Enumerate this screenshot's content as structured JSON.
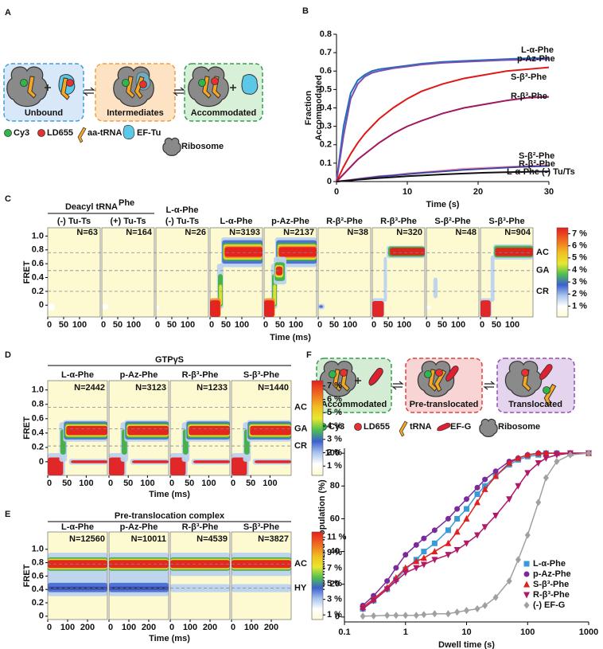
{
  "letters": [
    "A",
    "B",
    "C",
    "D",
    "E",
    "F"
  ],
  "diagram_a": {
    "states": [
      "Unbound",
      "Intermediates",
      "Accommodated"
    ],
    "legend": [
      "Cy3",
      "LD655",
      "aa-tRNA",
      "EF-Tu",
      "Ribosome"
    ]
  },
  "diagram_f": {
    "states": [
      "Accommodated",
      "Pre-translocated",
      "Translocated"
    ],
    "legend": [
      "Cy3",
      "LD655",
      "tRNA",
      "EF-G",
      "Ribosome"
    ]
  },
  "chart_data": [
    {
      "type": "line",
      "x_label": "Time (s)",
      "y_label": [
        "Fraction",
        "Accommodated"
      ],
      "x": [
        0,
        1,
        2,
        3,
        4,
        5,
        6,
        8,
        10,
        12,
        15,
        18,
        21,
        24,
        27,
        30
      ],
      "xlim": [
        0,
        30
      ],
      "xticks": [
        0,
        10,
        20,
        30
      ],
      "ylim": [
        0,
        0.8
      ],
      "yticks": [
        0,
        0.1,
        0.2,
        0.3,
        0.4,
        0.5,
        0.6,
        0.7,
        0.8
      ],
      "series": [
        {
          "name": "L-α-Phe",
          "color": "#1f6fc0",
          "values": [
            0,
            0.3,
            0.48,
            0.55,
            0.58,
            0.6,
            0.61,
            0.62,
            0.63,
            0.64,
            0.65,
            0.655,
            0.66,
            0.665,
            0.67,
            0.67
          ]
        },
        {
          "name": "p-Az-Phe",
          "color": "#7a4fb0",
          "values": [
            0,
            0.25,
            0.45,
            0.53,
            0.57,
            0.59,
            0.6,
            0.615,
            0.625,
            0.635,
            0.645,
            0.65,
            0.655,
            0.66,
            0.662,
            0.665
          ]
        },
        {
          "name": "S-β³-Phe",
          "color": "#e01818",
          "values": [
            0,
            0.08,
            0.15,
            0.21,
            0.26,
            0.3,
            0.34,
            0.4,
            0.45,
            0.49,
            0.53,
            0.56,
            0.58,
            0.6,
            0.61,
            0.62
          ]
        },
        {
          "name": "R-β³-Phe",
          "color": "#a01860",
          "values": [
            0,
            0.04,
            0.08,
            0.12,
            0.15,
            0.18,
            0.21,
            0.26,
            0.3,
            0.33,
            0.37,
            0.4,
            0.42,
            0.44,
            0.455,
            0.46
          ]
        },
        {
          "name": "S-β²-Phe",
          "color": "#f09aa8",
          "values": [
            0,
            0.005,
            0.01,
            0.015,
            0.02,
            0.025,
            0.03,
            0.035,
            0.045,
            0.05,
            0.06,
            0.07,
            0.075,
            0.08,
            0.085,
            0.09
          ]
        },
        {
          "name": "R-β²-Phe",
          "color": "#4040a0",
          "values": [
            0,
            0.004,
            0.008,
            0.013,
            0.018,
            0.022,
            0.027,
            0.033,
            0.04,
            0.047,
            0.055,
            0.064,
            0.07,
            0.076,
            0.081,
            0.085
          ]
        },
        {
          "name": "L-α-Phe (-) Tu/Ts",
          "color": "#111111",
          "values": [
            0,
            0.003,
            0.006,
            0.01,
            0.013,
            0.016,
            0.019,
            0.024,
            0.029,
            0.033,
            0.039,
            0.044,
            0.048,
            0.051,
            0.053,
            0.055
          ]
        }
      ]
    },
    {
      "type": "heatmap",
      "headers": [
        "Deacyl tRNA",
        "L-α-Phe"
      ],
      "header_sup": "Phe",
      "x_label": "Time (ms)",
      "y_label": "FRET",
      "xlim": [
        0,
        165
      ],
      "xticks": [
        0,
        50,
        100
      ],
      "ylim": [
        -0.17,
        1.12
      ],
      "yticks": [
        0,
        0.2,
        0.4,
        0.6,
        0.8,
        {
          "value": 1,
          "label": "1.0"
        }
      ],
      "states": [
        {
          "label": "AC",
          "value": 0.76
        },
        {
          "label": "GA",
          "value": 0.5
        },
        {
          "label": "CR",
          "value": 0.2
        }
      ],
      "colorbar_lim": [
        0.1,
        7.5
      ],
      "colorbar_ticks": [
        {
          "value": 1,
          "label": "1 %"
        },
        {
          "value": 2,
          "label": "2 %"
        },
        {
          "value": 3,
          "label": "3 %"
        },
        {
          "value": 4,
          "label": "4 %"
        },
        {
          "value": 5,
          "label": "5 %"
        },
        {
          "value": 6,
          "label": "6 %"
        },
        {
          "value": 7,
          "label": "7 %"
        }
      ],
      "panels": [
        {
          "name": "(-) Tu-Ts",
          "color": "#222222",
          "count_label": "N=63"
        },
        {
          "name": "(+) Tu-Ts",
          "color": "#222222",
          "count_label": "N=164"
        },
        {
          "name": "(-) Tu-Ts",
          "color": "#222222",
          "count_label": "N=26"
        },
        {
          "name": "L-α-Phe",
          "color": "#2a7fc1",
          "count_label": "N=3193"
        },
        {
          "name": "p-Az-Phe",
          "color": "#7b4fa8",
          "count_label": "N=2137"
        },
        {
          "name": "R-β²-Phe",
          "color": "#3a3a9a",
          "count_label": "N=38"
        },
        {
          "name": "R-β³-Phe",
          "color": "#a0195a",
          "count_label": "N=320"
        },
        {
          "name": "S-β²-Phe",
          "color": "#f0a0a8",
          "count_label": "N=48"
        },
        {
          "name": "S-β³-Phe",
          "color": "#d42020",
          "count_label": "N=904"
        }
      ]
    },
    {
      "type": "heatmap",
      "title": "GTPγS",
      "x_label": "Time (ms)",
      "y_label": "FRET",
      "xlim": [
        0,
        155
      ],
      "xticks": [
        0,
        50,
        100
      ],
      "ylim": [
        -0.19,
        1.13
      ],
      "yticks": [
        0,
        0.2,
        0.4,
        0.6,
        0.8,
        {
          "value": 1,
          "label": "1.0"
        }
      ],
      "states": [
        {
          "label": "AC",
          "value": 0.76
        },
        {
          "label": "GA",
          "value": 0.46
        },
        {
          "label": "CR",
          "value": 0.22
        }
      ],
      "colorbar_lim": [
        0.3,
        7.4
      ],
      "colorbar_ticks": [
        {
          "value": 1,
          "label": "1 %"
        },
        {
          "value": 2,
          "label": "2 %"
        },
        {
          "value": 3,
          "label": "3 %"
        },
        {
          "value": 4,
          "label": "4 %"
        },
        {
          "value": 5,
          "label": "5 %"
        },
        {
          "value": 6,
          "label": "6 %"
        },
        {
          "value": 7,
          "label": "7 %"
        }
      ],
      "panels": [
        {
          "name": "L-α-Phe",
          "color": "#2a7fc1",
          "count_label": "N=2442"
        },
        {
          "name": "p-Az-Phe",
          "color": "#7b4fa8",
          "count_label": "N=3123"
        },
        {
          "name": "R-β³-Phe",
          "color": "#a0195a",
          "count_label": "N=1233"
        },
        {
          "name": "S-β³-Phe",
          "color": "#d42020",
          "count_label": "N=1440"
        }
      ]
    },
    {
      "type": "heatmap",
      "title": "Pre-translocation complex",
      "x_label": "Time (ms)",
      "y_label": "FRET",
      "xlim": [
        0,
        300
      ],
      "xticks": [
        0,
        100,
        200
      ],
      "ylim": [
        -0.05,
        1.26
      ],
      "yticks": [
        0,
        0.2,
        0.4,
        0.6,
        0.8,
        {
          "value": 1,
          "label": "1.0"
        }
      ],
      "states": [
        {
          "label": "AC",
          "value": 0.78
        },
        {
          "label": "HY",
          "value": 0.42
        }
      ],
      "colorbar_lim": [
        0.4,
        11.7
      ],
      "colorbar_ticks": [
        {
          "value": 1,
          "label": "1 %"
        },
        {
          "value": 3,
          "label": "3 %"
        },
        {
          "value": 5,
          "label": "5 %"
        },
        {
          "value": 7,
          "label": "7 %"
        },
        {
          "value": 9,
          "label": "9 %"
        },
        {
          "value": 11,
          "label": "11 %"
        }
      ],
      "panels": [
        {
          "name": "L-α-Phe",
          "color": "#2a7fc1",
          "count_label": "N=12560"
        },
        {
          "name": "p-Az-Phe",
          "color": "#7b4fa8",
          "count_label": "N=10011"
        },
        {
          "name": "R-β³-Phe",
          "color": "#a0195a",
          "count_label": "N=4539"
        },
        {
          "name": "S-β³-Phe",
          "color": "#d42020",
          "count_label": "N=3827"
        }
      ]
    },
    {
      "type": "line",
      "log_x": true,
      "legend": "lower right",
      "x_label": "Dwell time (s)",
      "y_label": "Normalized Population (%)",
      "x": [
        0.2,
        0.3,
        0.5,
        0.7,
        1,
        1.5,
        2,
        3,
        5,
        7,
        10,
        15,
        20,
        30,
        50,
        70,
        100,
        150,
        200,
        300,
        500,
        1000
      ],
      "xlim": [
        0.1,
        1000
      ],
      "xticks": [
        0.1,
        1,
        10,
        100,
        1000
      ],
      "ylim": [
        -3,
        103
      ],
      "yticks": [
        0,
        20,
        40,
        60,
        80,
        100
      ],
      "series": [
        {
          "name": "L-α-Phe",
          "color": "#3a9ad8",
          "marker": "square",
          "values": [
            5,
            10,
            17,
            23,
            29,
            35,
            40,
            45,
            53,
            60,
            66,
            75,
            80,
            86,
            93,
            96,
            98,
            99,
            100,
            100,
            100,
            100
          ]
        },
        {
          "name": "p-Az-Phe",
          "color": "#7a2a9a",
          "marker": "circle",
          "values": [
            7,
            13,
            22,
            30,
            38,
            44,
            48,
            53,
            60,
            66,
            72,
            79,
            84,
            89,
            95,
            97,
            99,
            100,
            100,
            100,
            100,
            100
          ]
        },
        {
          "name": "S-β³-Phe",
          "color": "#e02020",
          "marker": "triangle-up",
          "values": [
            6,
            11,
            18,
            24,
            30,
            34,
            36,
            40,
            45,
            52,
            60,
            70,
            78,
            86,
            94,
            97,
            99,
            100,
            100,
            100,
            100,
            100
          ]
        },
        {
          "name": "R-β³-Phe",
          "color": "#b01868",
          "marker": "triangle-down",
          "values": [
            5,
            10,
            17,
            22,
            27,
            30,
            32,
            35,
            38,
            41,
            45,
            50,
            55,
            62,
            72,
            80,
            88,
            94,
            97,
            99,
            100,
            100
          ]
        },
        {
          "name": "(-) EF-G",
          "color": "#a0a0a0",
          "marker": "diamond",
          "values": [
            0.5,
            0.7,
            1,
            1,
            1,
            1,
            1.5,
            2,
            2,
            3,
            4,
            5,
            7,
            12,
            22,
            35,
            50,
            70,
            85,
            95,
            99,
            100
          ]
        }
      ]
    }
  ]
}
